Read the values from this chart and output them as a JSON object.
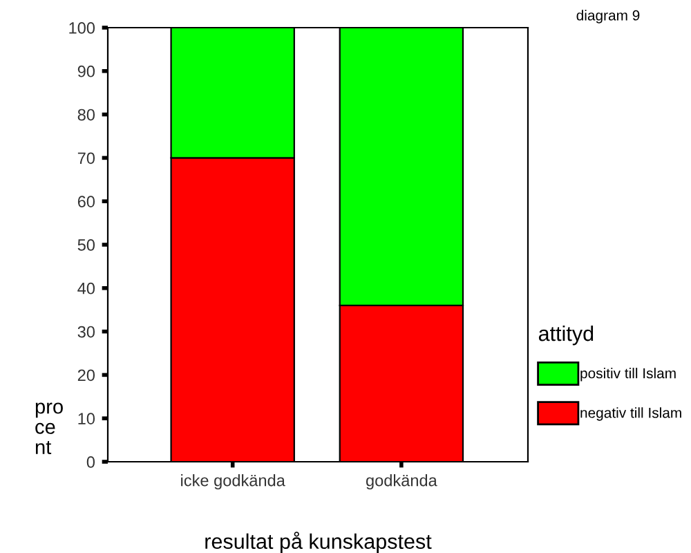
{
  "chart_data": {
    "type": "bar",
    "stacked": true,
    "categories": [
      "icke godkända",
      "godkända"
    ],
    "series": [
      {
        "name": "negativ till Islam",
        "color": "#ff0000",
        "values": [
          70,
          36
        ]
      },
      {
        "name": "positiv till Islam",
        "color": "#00ff00",
        "values": [
          30,
          64
        ]
      }
    ],
    "ylim": [
      0,
      100
    ],
    "yticks": [
      0,
      10,
      20,
      30,
      40,
      50,
      60,
      70,
      80,
      90,
      100
    ],
    "xlabel": "resultat på kunskapstest",
    "ylabel": "pro\nce\nnt",
    "legend_title": "attityd",
    "legend": "right",
    "grid": false,
    "annotations": [
      "diagram 9"
    ]
  }
}
